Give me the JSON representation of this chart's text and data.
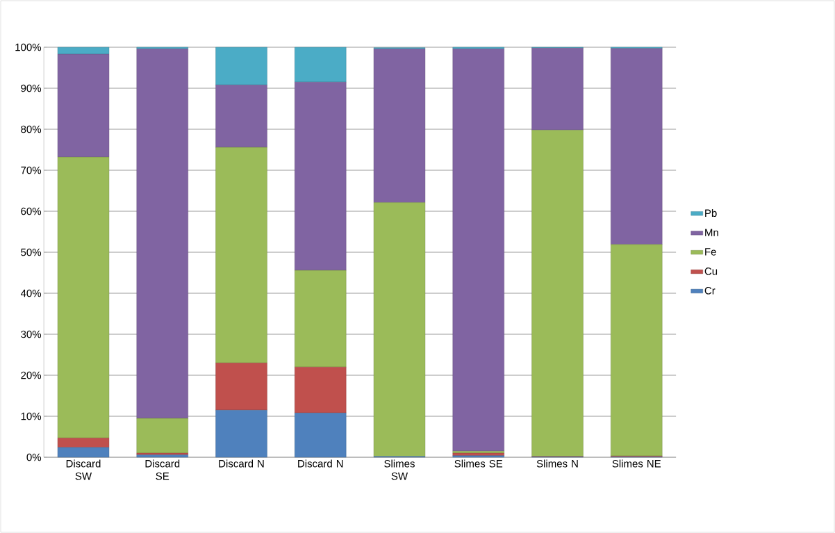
{
  "chart_data": {
    "type": "bar",
    "stacked": true,
    "categories": [
      "Discard SW",
      "Discard SE",
      "Discard N",
      "Discard N",
      "Slimes SW",
      "Slimes SE",
      "Slimes N",
      "Slimes NE"
    ],
    "series": [
      {
        "name": "Cr",
        "color": "#4f81bd",
        "values": [
          2.4,
          0.6,
          11.5,
          10.8,
          0.2,
          0.4,
          0.1,
          0.1
        ]
      },
      {
        "name": "Cu",
        "color": "#c0504d",
        "values": [
          2.3,
          0.4,
          11.5,
          11.2,
          null,
          0.6,
          0.1,
          0.2
        ]
      },
      {
        "name": "Fe",
        "color": "#9bbb59",
        "values": [
          68.5,
          8.5,
          52.6,
          23.6,
          61.9,
          0.5,
          79.6,
          51.6
        ]
      },
      {
        "name": "Mn",
        "color": "#8064a2",
        "values": [
          25.1,
          90.1,
          15.2,
          45.9,
          37.5,
          98.1,
          20.0,
          47.8
        ]
      },
      {
        "name": "Pb",
        "color": "#4bacc6",
        "values": [
          1.7,
          0.4,
          9.2,
          8.5,
          0.3,
          0.4,
          0.2,
          0.3
        ]
      }
    ],
    "ylim": [
      0,
      100
    ],
    "yticks": [
      {
        "value": 0,
        "label": "0%"
      },
      {
        "value": 10,
        "label": "10%"
      },
      {
        "value": 20,
        "label": "20%"
      },
      {
        "value": 30,
        "label": "30%"
      },
      {
        "value": 40,
        "label": "40%"
      },
      {
        "value": 50,
        "label": "50%"
      },
      {
        "value": 60,
        "label": "60%"
      },
      {
        "value": 70,
        "label": "70%"
      },
      {
        "value": 80,
        "label": "80%"
      },
      {
        "value": 90,
        "label": "90%"
      },
      {
        "value": 100,
        "label": "100%"
      }
    ],
    "grid": "y",
    "legend": "right"
  }
}
